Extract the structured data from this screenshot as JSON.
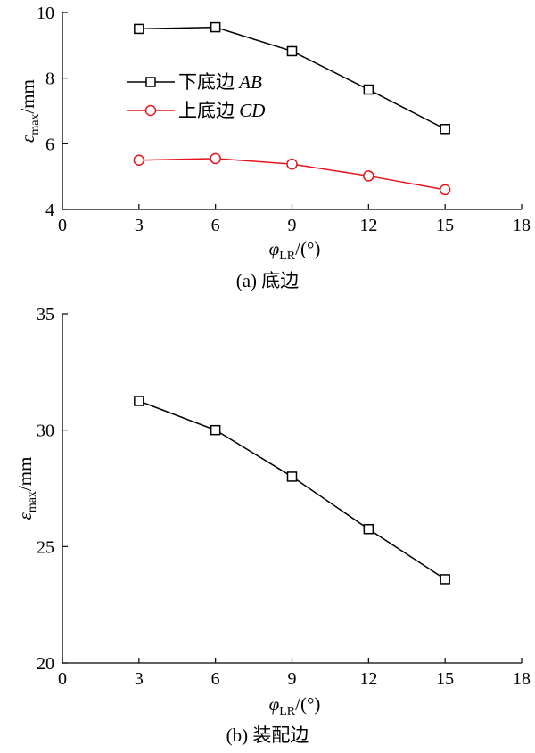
{
  "chart_data": [
    {
      "type": "line",
      "caption": "(a)  底边",
      "xlabel": "φLR/(°)",
      "xlabel_var": "φ",
      "xlabel_sub": "LR",
      "xlabel_unit": "/(°)",
      "ylabel_var": "ε",
      "ylabel_sub": "max",
      "ylabel_unit": "/mm",
      "xlim": [
        0,
        18
      ],
      "ylim": [
        4,
        10
      ],
      "xticks": [
        0,
        3,
        6,
        9,
        12,
        15,
        18
      ],
      "yticks": [
        4,
        6,
        8,
        10
      ],
      "legend_position": "upper-left",
      "series": [
        {
          "name": "下底边 AB",
          "name_cn": "下底边",
          "name_it": "AB",
          "color": "#000000",
          "marker": "square",
          "x": [
            3,
            6,
            9,
            12,
            15
          ],
          "y": [
            9.5,
            9.55,
            8.82,
            7.65,
            6.45
          ]
        },
        {
          "name": "上底边 CD",
          "name_cn": "上底边",
          "name_it": "CD",
          "color": "#e8141c",
          "marker": "circle",
          "x": [
            3,
            6,
            9,
            12,
            15
          ],
          "y": [
            5.5,
            5.55,
            5.38,
            5.02,
            4.6
          ]
        }
      ]
    },
    {
      "type": "line",
      "caption": "(b)  装配边",
      "xlabel": "φLR/(°)",
      "xlabel_var": "φ",
      "xlabel_sub": "LR",
      "xlabel_unit": "/(°)",
      "ylabel_var": "ε",
      "ylabel_sub": "max",
      "ylabel_unit": "/mm",
      "xlim": [
        0,
        18
      ],
      "ylim": [
        20,
        35
      ],
      "xticks": [
        0,
        3,
        6,
        9,
        12,
        15,
        18
      ],
      "yticks": [
        20,
        25,
        30,
        35
      ],
      "series": [
        {
          "color": "#000000",
          "marker": "square",
          "x": [
            3,
            6,
            9,
            12,
            15
          ],
          "y": [
            31.25,
            30.0,
            28.0,
            25.75,
            23.6
          ]
        }
      ]
    }
  ]
}
